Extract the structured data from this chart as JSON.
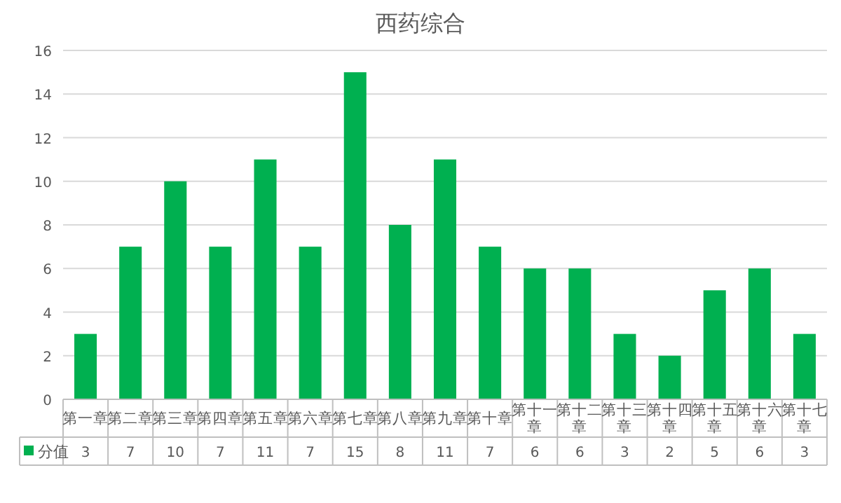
{
  "chart_data": {
    "type": "bar",
    "title": "西药综合",
    "categories": [
      "第一章",
      "第二章",
      "第三章",
      "第四章",
      "第五章",
      "第六章",
      "第七章",
      "第八章",
      "第九章",
      "第十章",
      "第十一章",
      "第十二章",
      "第十三章",
      "第十四章",
      "第十五章",
      "第十六章",
      "第十七章"
    ],
    "series": [
      {
        "name": "分值",
        "color": "#00b050",
        "values": [
          3,
          7,
          10,
          7,
          11,
          7,
          15,
          8,
          11,
          7,
          6,
          6,
          3,
          2,
          5,
          6,
          3
        ]
      }
    ],
    "ylim": [
      0,
      16
    ],
    "yticks": [
      0,
      2,
      4,
      6,
      8,
      10,
      12,
      14,
      16
    ],
    "grid": "y",
    "legend": "bottom",
    "data_labels": true
  }
}
